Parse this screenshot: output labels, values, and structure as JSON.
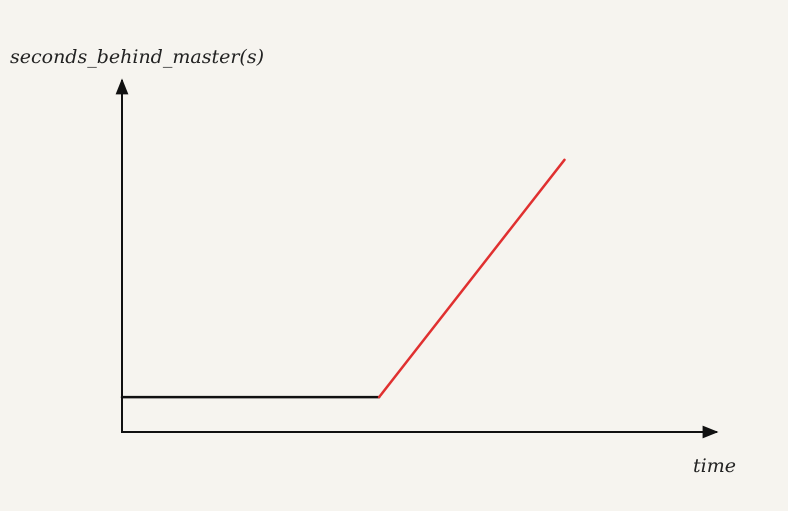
{
  "chart_data": {
    "type": "line",
    "title": "",
    "ylabel": "seconds_behind_master(s)",
    "xlabel": "time",
    "xlim": [
      0,
      100
    ],
    "ylim": [
      0,
      100
    ],
    "grid": false,
    "legend": "none",
    "series": [
      {
        "color": "#111111",
        "x": [
          0,
          43
        ],
        "y": [
          10,
          10
        ]
      },
      {
        "color": "#e03030",
        "x": [
          43,
          74
        ],
        "y": [
          10,
          78
        ]
      }
    ]
  }
}
